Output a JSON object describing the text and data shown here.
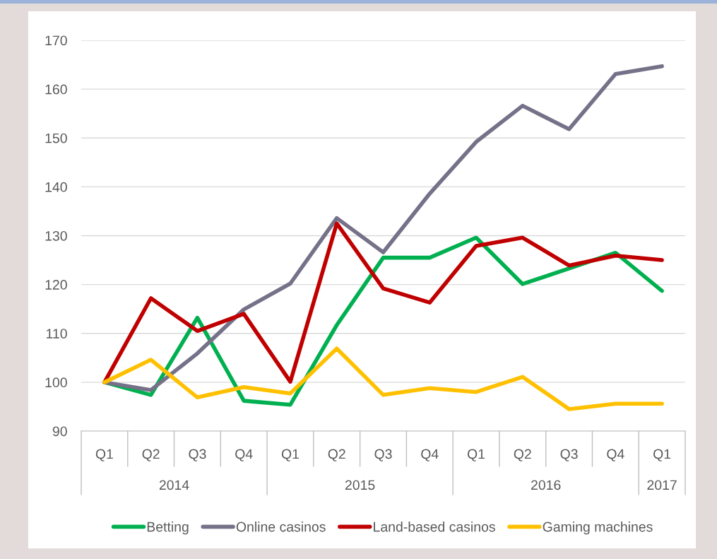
{
  "chart_data": {
    "type": "line",
    "categories": [
      "Q1",
      "Q2",
      "Q3",
      "Q4",
      "Q1",
      "Q2",
      "Q3",
      "Q4",
      "Q1",
      "Q2",
      "Q3",
      "Q4",
      "Q1"
    ],
    "annotations": [
      "2014",
      "2015",
      "2016",
      "2017"
    ],
    "series": [
      {
        "name": "Betting",
        "color": "#00b050",
        "values": [
          100,
          97.4,
          113.2,
          96.2,
          95.4,
          111.7,
          125.5,
          125.5,
          129.6,
          120.1,
          123.3,
          126.5,
          118.7
        ]
      },
      {
        "name": "Online casinos",
        "color": "#757188",
        "values": [
          100,
          98.4,
          105.9,
          114.9,
          120.2,
          133.6,
          126.6,
          138.6,
          149.2,
          156.6,
          151.8,
          163.1,
          164.7
        ]
      },
      {
        "name": "Land-based casinos",
        "color": "#c00000",
        "values": [
          100,
          117.2,
          110.5,
          114.0,
          100.1,
          132.5,
          119.2,
          116.3,
          127.9,
          129.6,
          123.9,
          125.9,
          125.0
        ]
      },
      {
        "name": "Gaming machines",
        "color": "#ffc000",
        "values": [
          100,
          104.6,
          96.9,
          99.0,
          97.7,
          106.9,
          97.4,
          98.8,
          98.0,
          101.1,
          94.5,
          95.6,
          95.6
        ]
      }
    ],
    "ylim": [
      90,
      170
    ],
    "yticks": [
      90,
      100,
      110,
      120,
      130,
      140,
      150,
      160,
      170
    ],
    "grid": "y",
    "legend": "bottom",
    "marker": "none",
    "line_style": "solid"
  }
}
